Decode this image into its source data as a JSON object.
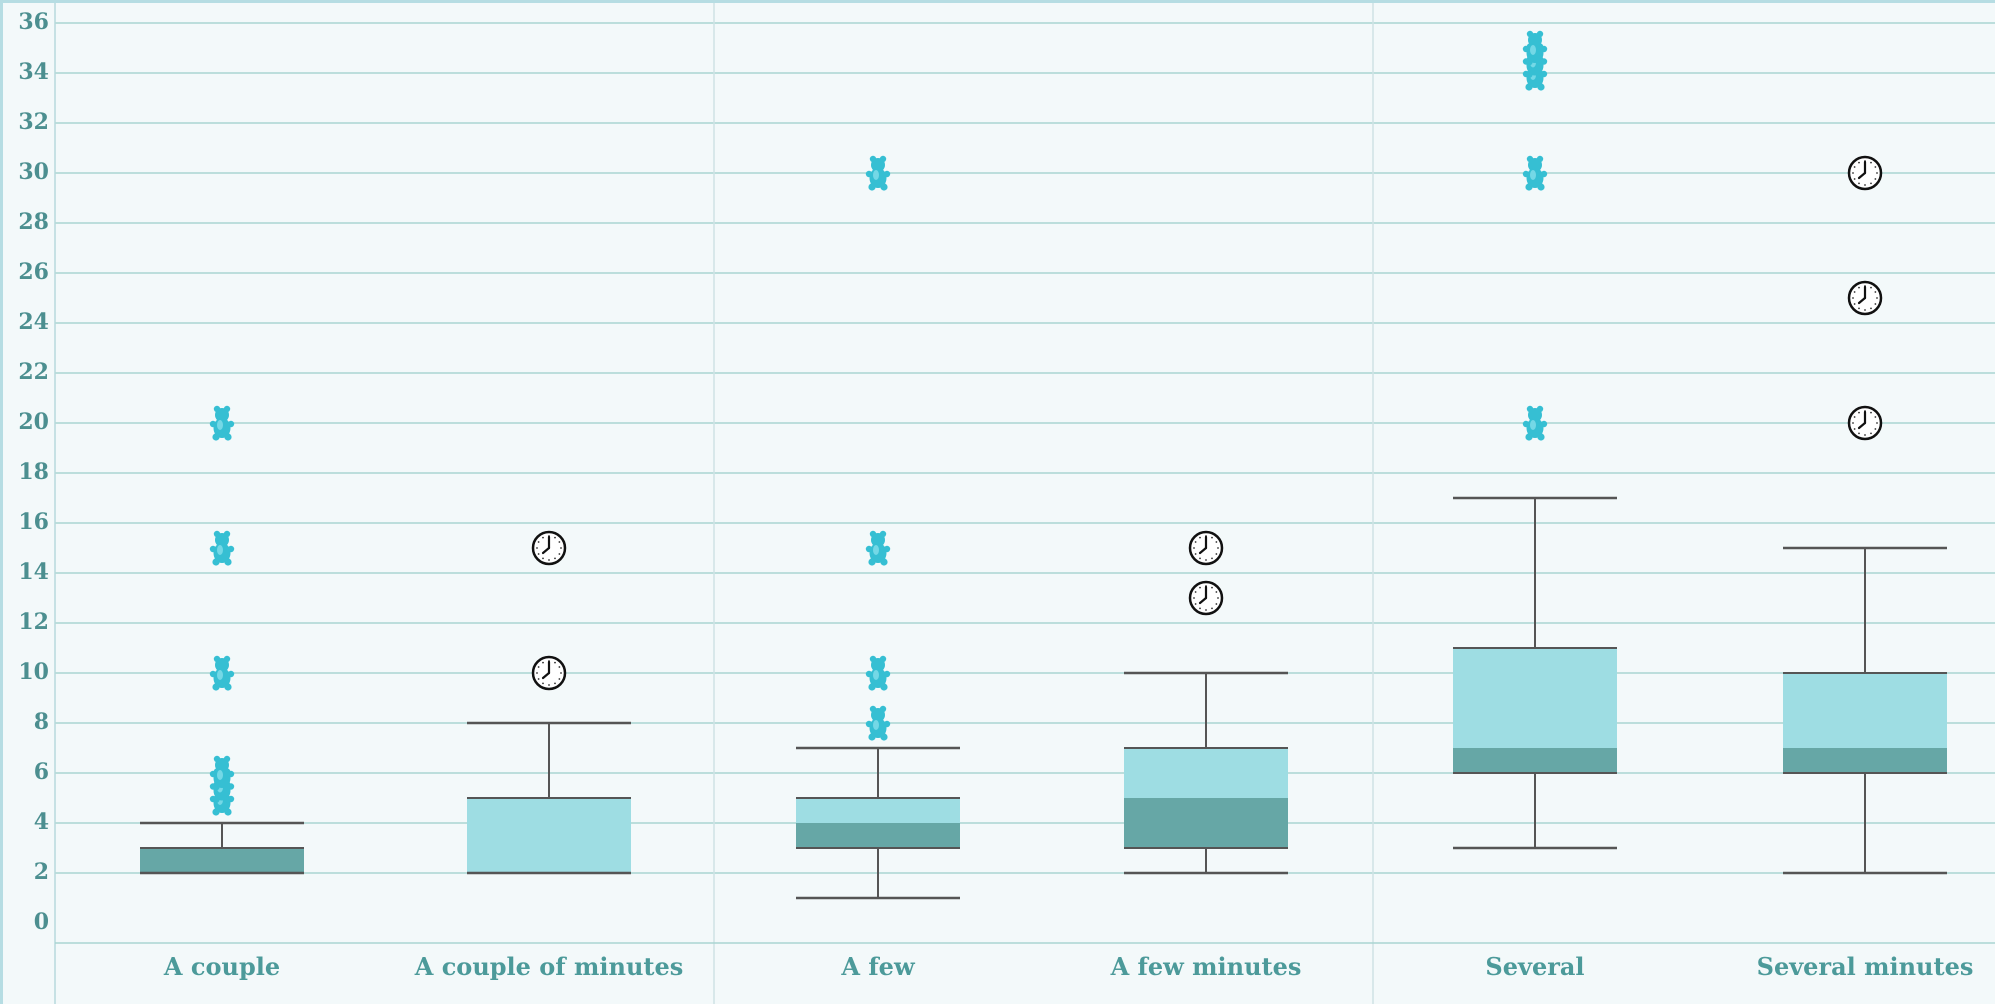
{
  "chart_data": {
    "type": "box",
    "categories": [
      "A couple",
      "A couple of minutes",
      "A few",
      "A few minutes",
      "Several",
      "Several minutes"
    ],
    "y_ticks": [
      "0",
      "2",
      "4",
      "6",
      "8",
      "10",
      "12",
      "14",
      "16",
      "18",
      "20",
      "22",
      "24",
      "26",
      "28",
      "30",
      "32",
      "34",
      "36"
    ],
    "ylim": [
      0,
      36
    ],
    "grid": true,
    "boxes": [
      {
        "category": "A couple",
        "min": 2,
        "q1": 2,
        "median": 3,
        "q3": 3,
        "max": 4,
        "outliers": [
          5,
          5.5,
          6,
          10,
          15,
          20
        ],
        "marker": "gummy-bear"
      },
      {
        "category": "A couple of minutes",
        "min": 2,
        "q1": 2,
        "median": 2,
        "q3": 5,
        "max": 8,
        "outliers": [
          10,
          15
        ],
        "marker": "clock"
      },
      {
        "category": "A few",
        "min": 1,
        "q1": 3,
        "median": 4,
        "q3": 5,
        "max": 7,
        "outliers": [
          8,
          10,
          15,
          30
        ],
        "marker": "gummy-bear"
      },
      {
        "category": "A few minutes",
        "min": 2,
        "q1": 3,
        "median": 5,
        "q3": 7,
        "max": 10,
        "outliers": [
          13,
          15
        ],
        "marker": "clock"
      },
      {
        "category": "Several",
        "min": 3,
        "q1": 6,
        "median": 7,
        "q3": 11,
        "max": 17,
        "outliers": [
          20,
          30,
          34,
          34.5,
          35
        ],
        "marker": "gummy-bear"
      },
      {
        "category": "Several minutes",
        "min": 2,
        "q1": 6,
        "median": 7,
        "q3": 10,
        "max": 15,
        "outliers": [
          20,
          25,
          30
        ],
        "marker": "clock"
      }
    ],
    "colors": {
      "box_fill": "#9edde3",
      "box_lower_fill": "#66a7a6",
      "whisker": "#555555",
      "grid": "#a9d6d2",
      "axis_text": "#4c8f90",
      "gummy_bear": "#36bfd3",
      "clock_face": "#ffffff"
    }
  }
}
